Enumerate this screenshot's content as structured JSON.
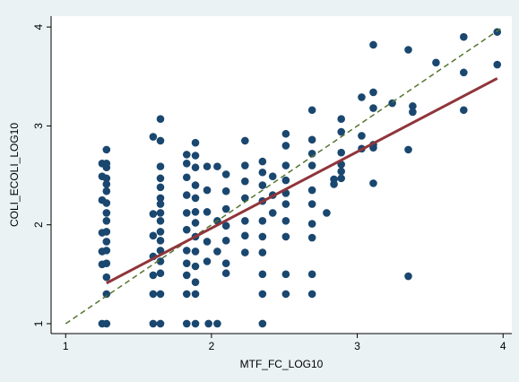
{
  "chart_data": {
    "type": "scatter",
    "x_label": "MTF_FC_LOG10",
    "y_label": "COLI_ECOLI_LOG10",
    "xlim": [
      0.9,
      4.06
    ],
    "ylim": [
      0.9,
      4.11
    ],
    "xticks": [
      1,
      2,
      3,
      4
    ],
    "yticks": [
      1,
      2,
      3,
      4
    ],
    "points": {
      "color": "#1a476f",
      "x": [
        1.28,
        1.28,
        1.28,
        1.28,
        1.28,
        1.28,
        1.28,
        1.28,
        1.28,
        1.28,
        1.28,
        1.28,
        1.28,
        1.28,
        1.28,
        1.28,
        1.25,
        1.25,
        1.25,
        1.25,
        1.25,
        1.25,
        1.25,
        1.65,
        1.65,
        1.65,
        1.65,
        1.65,
        1.65,
        1.65,
        1.65,
        1.65,
        1.65,
        1.65,
        1.65,
        1.65,
        1.65,
        1.65,
        1.65,
        1.6,
        1.6,
        1.6,
        1.6,
        1.6,
        1.6,
        1.6,
        1.83,
        1.83,
        1.83,
        1.83,
        1.83,
        1.83,
        1.83,
        1.83,
        1.83,
        1.83,
        1.83,
        1.89,
        1.89,
        1.89,
        1.89,
        1.89,
        1.89,
        1.89,
        1.89,
        1.89,
        1.89,
        1.89,
        1.89,
        1.89,
        1.97,
        1.97,
        1.97,
        1.97,
        1.97,
        1.98,
        2.04,
        2.04,
        2.04,
        2.04,
        2.1,
        2.1,
        2.1,
        2.1,
        2.1,
        2.1,
        2.1,
        2.23,
        2.23,
        2.23,
        2.23,
        2.23,
        2.23,
        2.23,
        2.35,
        2.35,
        2.35,
        2.35,
        2.35,
        2.35,
        2.35,
        2.35,
        2.35,
        2.35,
        2.42,
        2.42,
        2.42,
        2.51,
        2.51,
        2.51,
        2.51,
        2.51,
        2.51,
        2.51,
        2.51,
        2.51,
        2.51,
        2.69,
        2.69,
        2.69,
        2.69,
        2.69,
        2.69,
        2.69,
        2.69,
        2.69,
        2.69,
        2.79,
        2.84,
        2.84,
        2.89,
        2.89,
        2.89,
        2.89,
        2.89,
        2.89,
        3.03,
        3.03,
        3.03,
        3.11,
        3.11,
        3.11,
        3.11,
        3.11,
        3.11,
        3.24,
        3.35,
        3.35,
        3.35,
        3.38,
        3.38,
        3.54,
        3.73,
        3.73,
        3.73,
        3.96,
        3.96
      ],
      "y": [
        1.0,
        1.3,
        1.47,
        1.61,
        1.74,
        1.83,
        1.93,
        2.04,
        2.12,
        2.22,
        2.34,
        2.41,
        2.47,
        2.58,
        2.62,
        2.76,
        2.62,
        2.49,
        2.25,
        1.92,
        1.73,
        1.6,
        1.0,
        3.07,
        2.85,
        2.59,
        2.47,
        2.38,
        2.27,
        2.21,
        2.12,
        2.04,
        1.93,
        1.84,
        1.74,
        1.63,
        1.51,
        1.3,
        1.0,
        2.89,
        2.11,
        1.89,
        1.68,
        1.49,
        1.3,
        1.0,
        1.0,
        1.3,
        1.49,
        1.61,
        1.74,
        1.95,
        2.12,
        2.3,
        2.48,
        2.62,
        2.71,
        2.83,
        2.7,
        2.58,
        2.4,
        2.27,
        2.13,
        2.02,
        1.88,
        1.73,
        1.58,
        1.42,
        1.3,
        1.0,
        2.59,
        2.35,
        2.13,
        1.83,
        1.63,
        1.0,
        1.0,
        2.59,
        2.04,
        1.73,
        2.51,
        2.34,
        2.16,
        1.99,
        1.84,
        1.61,
        1.51,
        2.85,
        2.6,
        2.44,
        2.27,
        2.04,
        1.89,
        1.72,
        1.0,
        1.3,
        1.5,
        1.72,
        1.88,
        2.04,
        2.24,
        2.4,
        2.53,
        2.64,
        2.49,
        2.3,
        2.12,
        2.92,
        2.8,
        2.6,
        2.45,
        2.32,
        2.21,
        2.04,
        1.88,
        1.5,
        1.3,
        3.16,
        2.86,
        2.72,
        2.6,
        2.35,
        2.21,
        2.01,
        1.87,
        1.5,
        1.3,
        2.12,
        2.46,
        2.41,
        3.07,
        2.94,
        2.73,
        2.61,
        2.54,
        2.47,
        3.29,
        2.9,
        2.77,
        3.82,
        3.34,
        3.18,
        2.81,
        2.78,
        2.42,
        3.23,
        3.77,
        2.76,
        1.48,
        3.2,
        3.14,
        3.64,
        3.9,
        3.54,
        3.16,
        3.95,
        3.62
      ]
    },
    "fit_line": {
      "color": "#90353b",
      "x": [
        1.28,
        3.96
      ],
      "y": [
        1.41,
        3.48
      ]
    },
    "reference_line": {
      "color": "#55752f",
      "dashed": true,
      "x": [
        1,
        4
      ],
      "y": [
        1,
        4
      ]
    }
  }
}
